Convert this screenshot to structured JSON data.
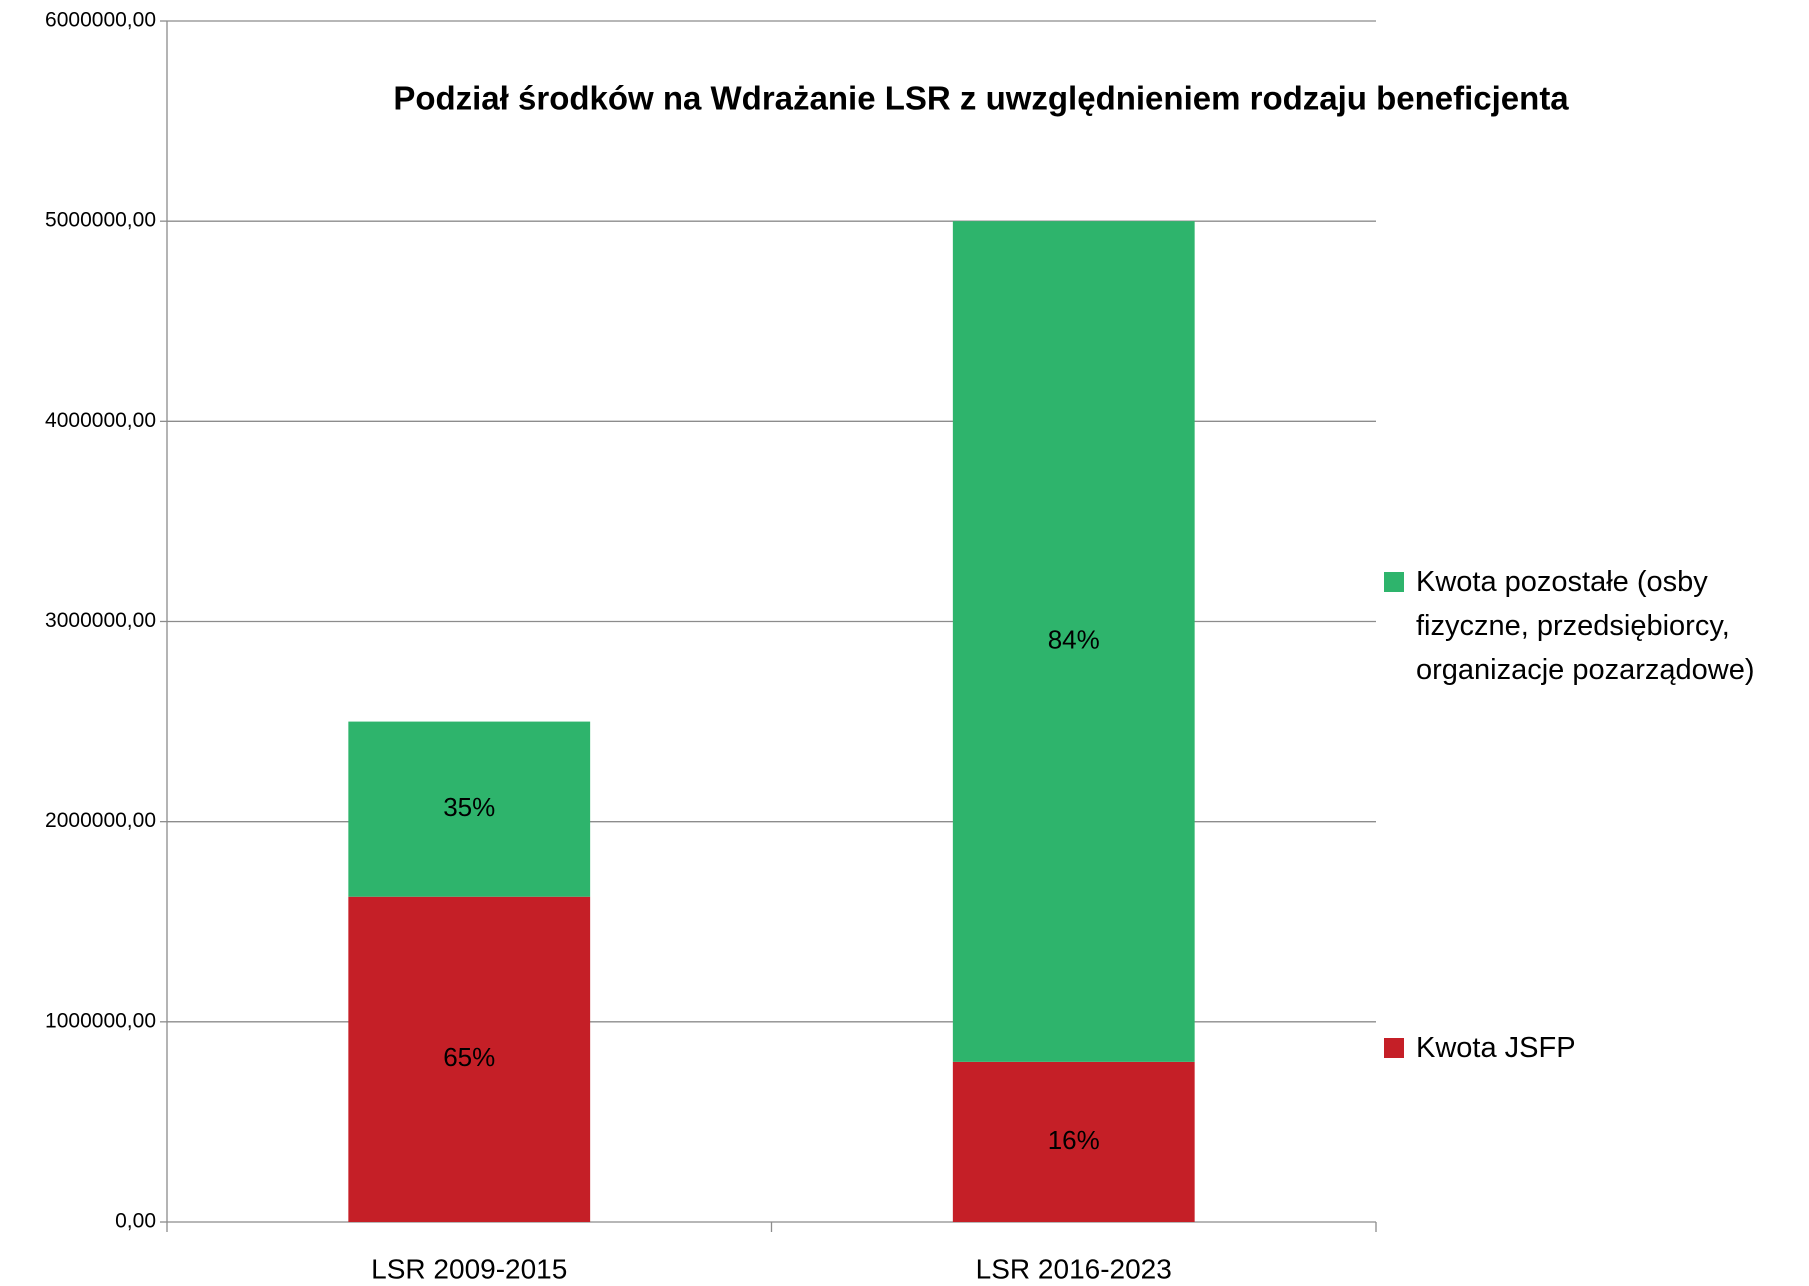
{
  "chart_data": {
    "type": "stacked_bar",
    "title": "Podział środków na Wdrażanie LSR z uwzględnieniem rodzaju beneficjenta",
    "categories": [
      "LSR 2009-2015",
      "LSR 2016-2023"
    ],
    "series": [
      {
        "name": "Kwota JSFP",
        "color": "#c51f27",
        "values": [
          1625000,
          800000
        ],
        "value_labels": [
          "65%",
          "16%"
        ]
      },
      {
        "name": "Kwota pozostałe (osby fizyczne, przedsiębiorcy, organizacje pozarządowe)",
        "color": "#2eb46c",
        "values": [
          875000,
          4200000
        ],
        "value_labels": [
          "35%",
          "84%"
        ]
      }
    ],
    "ylim": [
      0,
      6000000
    ],
    "yticks": [
      {
        "value": 0,
        "label": "0,00"
      },
      {
        "value": 1000000,
        "label": "1000000,00"
      },
      {
        "value": 2000000,
        "label": "2000000,00"
      },
      {
        "value": 3000000,
        "label": "3000000,00"
      },
      {
        "value": 4000000,
        "label": "4000000,00"
      },
      {
        "value": 5000000,
        "label": "5000000,00"
      },
      {
        "value": 6000000,
        "label": "6000000,00"
      }
    ],
    "grid": true,
    "legend": "right"
  }
}
